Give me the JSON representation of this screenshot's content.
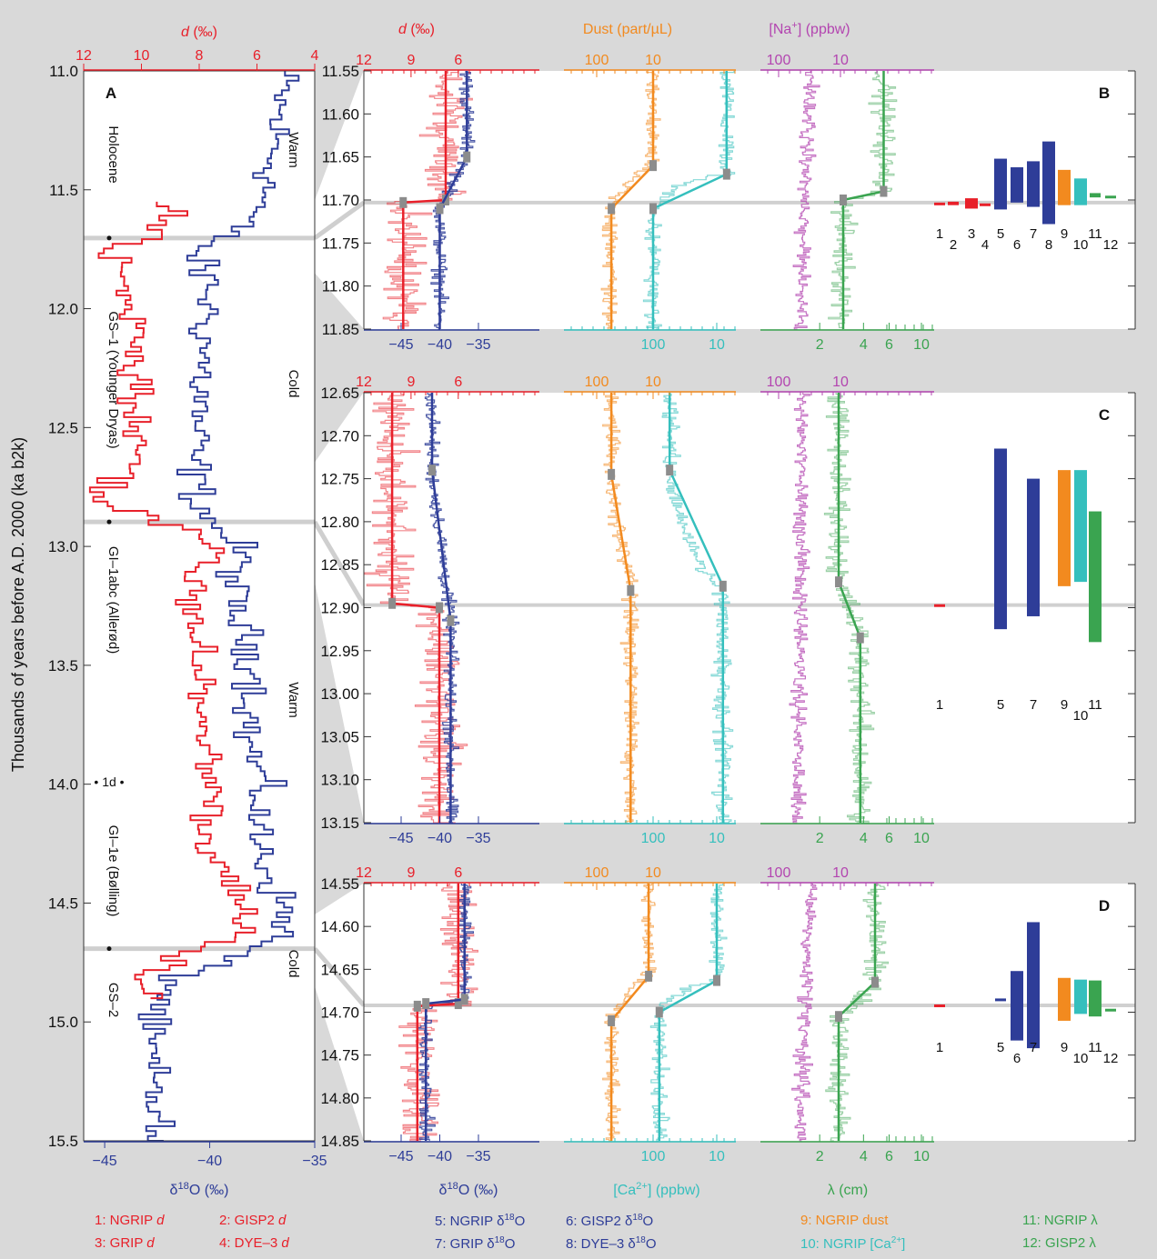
{
  "colors": {
    "red": "#e8202a",
    "blue": "#2e3d98",
    "orange": "#f28a1f",
    "teal": "#35bfbd",
    "magenta": "#b345b0",
    "green": "#3aa450",
    "gray": "#8c8c8c",
    "background": "#d9d9d9"
  },
  "panel_a": {
    "letter": "A",
    "top_axis_label": "d (‰)",
    "top_ticks": [
      "12",
      "10",
      "8",
      "6",
      "4"
    ],
    "bottom_ticks": [
      "−45",
      "−40",
      "−35"
    ],
    "bottom_axis_label": "δ18O (‰)",
    "y_axis_label": "Thousands of years before A.D. 2000 (ka b2k)",
    "y_ticks": [
      "11.0",
      "11.5",
      "12.0",
      "12.5",
      "13.0",
      "13.5",
      "14.0",
      "14.5",
      "15.0",
      "15.5"
    ],
    "period_labels": [
      "Holocene",
      "GS–1 (Younger Dryas)",
      "GI–1abc (Allerød)",
      "• 1d •",
      "GI–1e (Bølling)",
      "GS–2"
    ],
    "climate_labels": [
      "Warm",
      "Cold",
      "Warm",
      "Cold"
    ]
  },
  "column_headers": {
    "d": "d (‰)",
    "dust": "Dust (part/µL)",
    "na": "[Na+] (ppbw)"
  },
  "top_scales": {
    "d": [
      "12",
      "9",
      "6"
    ],
    "dust": [
      "100",
      "10"
    ],
    "na": [
      "100",
      "10"
    ]
  },
  "bottom_scales": {
    "d18o": [
      "−45",
      "−40",
      "−35"
    ],
    "ca": [
      "100",
      "10"
    ],
    "lambda": [
      "2",
      "4",
      "6",
      "10"
    ]
  },
  "bottom_axis_labels": {
    "d18o": "δ18O (‰)",
    "ca": "[Ca2+] (ppbw)",
    "lambda": "λ (cm)"
  },
  "panels": [
    {
      "letter": "B",
      "y_ticks": [
        "11.55",
        "11.60",
        "11.65",
        "11.70",
        "11.75",
        "11.80",
        "11.85"
      ],
      "bar_labels": [
        "1",
        "2",
        "3",
        "4",
        "5",
        "6",
        "7",
        "8",
        "9",
        "10",
        "11",
        "12"
      ]
    },
    {
      "letter": "C",
      "y_ticks": [
        "12.65",
        "12.70",
        "12.75",
        "12.80",
        "12.85",
        "12.90",
        "12.95",
        "13.00",
        "13.05",
        "13.10",
        "13.15"
      ],
      "bar_labels": [
        "1",
        "5",
        "7",
        "9",
        "10",
        "11"
      ]
    },
    {
      "letter": "D",
      "y_ticks": [
        "14.55",
        "14.60",
        "14.65",
        "14.70",
        "14.75",
        "14.80",
        "14.85"
      ],
      "bar_labels": [
        "1",
        "5",
        "6",
        "7",
        "9",
        "10",
        "11",
        "12"
      ]
    }
  ],
  "legend": [
    {
      "num": "1",
      "name": "NGRIP",
      "var": "d",
      "color": "#e8202a"
    },
    {
      "num": "2",
      "name": "GISP2",
      "var": "d",
      "color": "#e8202a"
    },
    {
      "num": "3",
      "name": "GRIP",
      "var": "d",
      "color": "#e8202a"
    },
    {
      "num": "4",
      "name": "DYE–3",
      "var": "d",
      "color": "#e8202a"
    },
    {
      "num": "5",
      "name": "NGRIP δ18O",
      "var": "",
      "color": "#2e3d98"
    },
    {
      "num": "6",
      "name": "GISP2 δ18O",
      "var": "",
      "color": "#2e3d98"
    },
    {
      "num": "7",
      "name": "GRIP δ18O",
      "var": "",
      "color": "#2e3d98"
    },
    {
      "num": "8",
      "name": "DYE–3 δ18O",
      "var": "",
      "color": "#2e3d98"
    },
    {
      "num": "9",
      "name": "NGRIP dust",
      "var": "",
      "color": "#f28a1f"
    },
    {
      "num": "10",
      "name": "NGRIP [Ca2+]",
      "var": "",
      "color": "#35bfbd"
    },
    {
      "num": "11",
      "name": "NGRIP λ",
      "var": "",
      "color": "#3aa450"
    },
    {
      "num": "12",
      "name": "GISP2 λ",
      "var": "",
      "color": "#3aa450"
    }
  ],
  "chart_data": [
    {
      "type": "line",
      "panel": "A",
      "title": "",
      "ylabel": "Thousands of years before A.D. 2000 (ka b2k)",
      "ylim": [
        11.0,
        15.5
      ],
      "series": [
        {
          "name": "NGRIP δ18O",
          "axis": "bottom",
          "xlim": [
            -46,
            -35
          ],
          "y": [
            11.0,
            11.2,
            11.4,
            11.55,
            11.7,
            11.75,
            11.9,
            12.1,
            12.4,
            12.6,
            12.8,
            12.9,
            13.0,
            13.2,
            13.5,
            13.8,
            14.0,
            14.2,
            14.4,
            14.6,
            14.7,
            14.8,
            15.0,
            15.2,
            15.4,
            15.5
          ],
          "x": [
            -36.5,
            -36.8,
            -37.0,
            -37.5,
            -39.5,
            -40.8,
            -40.0,
            -40.2,
            -40.5,
            -40.8,
            -40.5,
            -39.8,
            -38.5,
            -39.0,
            -37.8,
            -38.2,
            -37.5,
            -37.8,
            -37.0,
            -36.2,
            -38.5,
            -41.5,
            -43.0,
            -42.8,
            -42.5,
            -42.8
          ]
        },
        {
          "name": "NGRIP d",
          "axis": "top",
          "xlim": [
            12,
            4
          ],
          "y": [
            11.55,
            11.7,
            11.75,
            11.9,
            12.1,
            12.4,
            12.6,
            12.8,
            12.9,
            13.0,
            13.2,
            13.5,
            13.8,
            14.0,
            14.2,
            14.4,
            14.6,
            14.7,
            14.8,
            14.9
          ],
          "x": [
            9.0,
            9.5,
            11.0,
            10.8,
            10.2,
            10.5,
            10.0,
            11.5,
            9.0,
            7.5,
            8.2,
            8.0,
            7.8,
            7.5,
            8.0,
            6.8,
            6.2,
            8.5,
            10.2,
            9.5
          ]
        }
      ]
    },
    {
      "type": "line",
      "panel": "B",
      "ylim": [
        11.55,
        11.85
      ],
      "transition_depth": 11.703,
      "series": [
        {
          "name": "d",
          "fit_y": [
            11.55,
            11.7,
            11.703,
            11.85
          ],
          "fit_x": [
            6.8,
            6.8,
            9.5,
            9.5
          ]
        },
        {
          "name": "δ18O",
          "fit_y": [
            11.55,
            11.65,
            11.71,
            11.85
          ],
          "fit_x": [
            -36.5,
            -36.5,
            -40.0,
            -40.0
          ]
        },
        {
          "name": "dust",
          "fit_y": [
            11.55,
            11.66,
            11.71,
            11.85
          ],
          "fit_x": [
            10,
            10,
            55,
            55
          ]
        },
        {
          "name": "Ca2+",
          "fit_y": [
            11.55,
            11.67,
            11.71,
            11.85
          ],
          "fit_x": [
            7,
            7,
            100,
            100
          ]
        },
        {
          "name": "λ",
          "fit_y": [
            11.55,
            11.69,
            11.7,
            11.85
          ],
          "fit_x": [
            5.5,
            5.5,
            2.9,
            2.9
          ]
        }
      ],
      "durations": [
        {
          "label": "1",
          "from": 11.703,
          "to": 11.704
        },
        {
          "label": "2",
          "from": 11.702,
          "to": 11.706
        },
        {
          "label": "3",
          "from": 11.698,
          "to": 11.71
        },
        {
          "label": "4",
          "from": 11.704,
          "to": 11.705
        },
        {
          "label": "5",
          "from": 11.652,
          "to": 11.711
        },
        {
          "label": "6",
          "from": 11.662,
          "to": 11.703
        },
        {
          "label": "7",
          "from": 11.655,
          "to": 11.708
        },
        {
          "label": "8",
          "from": 11.632,
          "to": 11.728
        },
        {
          "label": "9",
          "from": 11.665,
          "to": 11.706
        },
        {
          "label": "10",
          "from": 11.675,
          "to": 11.706
        },
        {
          "label": "11",
          "from": 11.692,
          "to": 11.697
        },
        {
          "label": "12",
          "from": 11.695,
          "to": 11.696
        }
      ]
    },
    {
      "type": "line",
      "panel": "C",
      "ylim": [
        12.65,
        13.15
      ],
      "transition_depth": 12.897,
      "series": [
        {
          "name": "d",
          "fit_y": [
            12.65,
            12.895,
            12.9,
            13.15
          ],
          "fit_x": [
            10.2,
            10.2,
            7.2,
            7.2
          ]
        },
        {
          "name": "δ18O",
          "fit_y": [
            12.65,
            12.74,
            12.915,
            13.15
          ],
          "fit_x": [
            -41.0,
            -41.0,
            -38.6,
            -38.6
          ]
        },
        {
          "name": "dust",
          "fit_y": [
            12.65,
            12.745,
            12.88,
            13.15
          ],
          "fit_x": [
            55,
            55,
            25,
            25
          ]
        },
        {
          "name": "Ca2+",
          "fit_y": [
            12.65,
            12.74,
            12.875,
            13.15
          ],
          "fit_x": [
            55,
            55,
            8,
            8
          ]
        },
        {
          "name": "λ",
          "fit_y": [
            12.65,
            12.87,
            12.935,
            13.15
          ],
          "fit_x": [
            2.7,
            2.7,
            3.8,
            3.8
          ]
        }
      ],
      "durations": [
        {
          "label": "1",
          "from": 12.896,
          "to": 12.898
        },
        {
          "label": "5",
          "from": 12.715,
          "to": 12.925
        },
        {
          "label": "7",
          "from": 12.75,
          "to": 12.91
        },
        {
          "label": "9",
          "from": 12.74,
          "to": 12.875
        },
        {
          "label": "10",
          "from": 12.74,
          "to": 12.87
        },
        {
          "label": "11",
          "from": 12.788,
          "to": 12.94
        }
      ]
    },
    {
      "type": "line",
      "panel": "D",
      "ylim": [
        14.55,
        14.85
      ],
      "transition_depth": 14.692,
      "series": [
        {
          "name": "d",
          "fit_y": [
            14.55,
            14.69,
            14.693,
            14.85
          ],
          "fit_x": [
            6.0,
            6.0,
            8.6,
            8.6
          ]
        },
        {
          "name": "δ18O",
          "fit_y": [
            14.55,
            14.685,
            14.69,
            14.85
          ],
          "fit_x": [
            -36.8,
            -36.8,
            -41.8,
            -41.8
          ]
        },
        {
          "name": "dust",
          "fit_y": [
            14.55,
            14.658,
            14.71,
            14.85
          ],
          "fit_x": [
            12,
            12,
            55,
            55
          ]
        },
        {
          "name": "Ca2+",
          "fit_y": [
            14.55,
            14.663,
            14.7,
            14.85
          ],
          "fit_x": [
            10,
            10,
            80,
            80
          ]
        },
        {
          "name": "λ",
          "fit_y": [
            14.55,
            14.665,
            14.705,
            14.85
          ],
          "fit_x": [
            4.8,
            4.8,
            2.7,
            2.7
          ]
        }
      ],
      "durations": [
        {
          "label": "1",
          "from": 14.691,
          "to": 14.693
        },
        {
          "label": "5",
          "from": 14.684,
          "to": 14.686
        },
        {
          "label": "6",
          "from": 14.652,
          "to": 14.733
        },
        {
          "label": "7",
          "from": 14.595,
          "to": 14.742
        },
        {
          "label": "9",
          "from": 14.66,
          "to": 14.71
        },
        {
          "label": "10",
          "from": 14.662,
          "to": 14.702
        },
        {
          "label": "11",
          "from": 14.663,
          "to": 14.705
        },
        {
          "label": "12",
          "from": 14.696,
          "to": 14.697
        }
      ]
    }
  ]
}
